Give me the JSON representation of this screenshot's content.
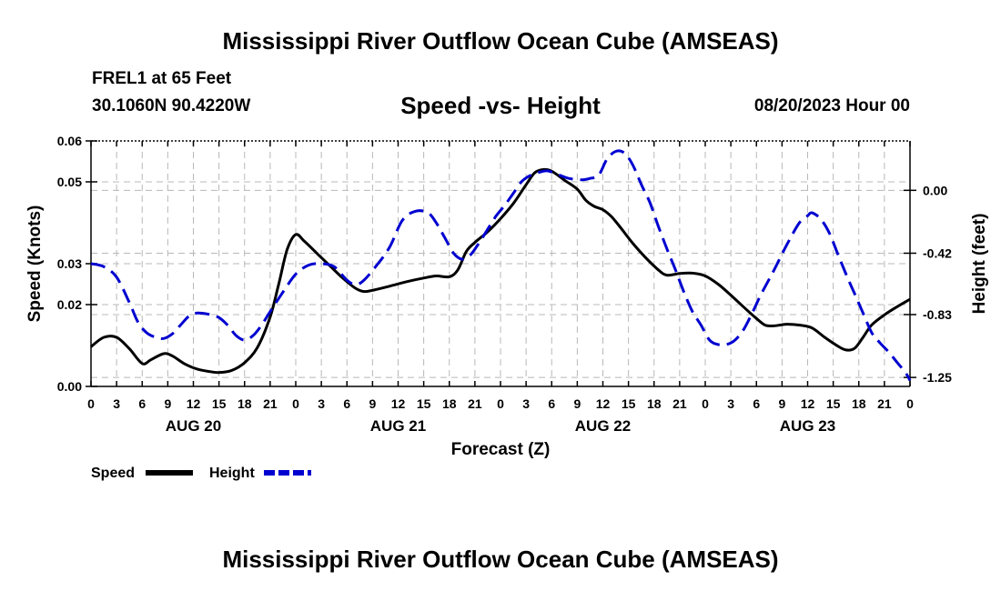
{
  "header": {
    "main_title": "Mississippi River Outflow Ocean Cube (AMSEAS)",
    "station": "FREL1 at 65 Feet",
    "coords": "30.1060N  90.4220W",
    "date": "08/20/2023 Hour 00"
  },
  "footer": {
    "main_title": "Mississippi River Outflow Ocean Cube (AMSEAS)"
  },
  "chart_data": {
    "type": "line",
    "title": "Speed -vs- Height",
    "xlabel": "Forecast (Z)",
    "ylabel": "Speed (Knots)",
    "y2label": "Height (feet)",
    "x_range": [
      0,
      96
    ],
    "ylim": [
      0,
      0.06
    ],
    "y2lim": [
      -1.31,
      0.33
    ],
    "yticks": [
      0,
      0.02,
      0.03,
      0.05,
      0.06
    ],
    "yticklabels": [
      "0.00",
      "0.02",
      "0.03",
      "0.05",
      "0.06"
    ],
    "y2ticks": [
      0.0,
      -0.42,
      -0.83,
      -1.25
    ],
    "y2ticklabels": [
      "0.00",
      "-0.42",
      "-0.83",
      "-1.25"
    ],
    "xtick_labels": [
      "0",
      "3",
      "6",
      "9",
      "12",
      "15",
      "18",
      "21",
      "0",
      "3",
      "6",
      "9",
      "12",
      "15",
      "18",
      "21",
      "0",
      "3",
      "6",
      "9",
      "12",
      "15",
      "18",
      "21",
      "0",
      "3",
      "6",
      "9",
      "12",
      "15",
      "18",
      "21",
      "0"
    ],
    "day_labels": [
      {
        "label": "AUG 20",
        "x": 12
      },
      {
        "label": "AUG 21",
        "x": 36
      },
      {
        "label": "AUG 22",
        "x": 60
      },
      {
        "label": "AUG 23",
        "x": 84
      }
    ],
    "grid": true,
    "series": [
      {
        "name": "Speed",
        "axis": "left",
        "color": "#000000",
        "style": "solid",
        "points": [
          [
            0,
            0.0097
          ],
          [
            1.5,
            0.012
          ],
          [
            3,
            0.012
          ],
          [
            4.5,
            0.0092
          ],
          [
            6,
            0.0056
          ],
          [
            7,
            0.0065
          ],
          [
            8.5,
            0.008
          ],
          [
            9.5,
            0.0075
          ],
          [
            11,
            0.0055
          ],
          [
            12.5,
            0.0042
          ],
          [
            14,
            0.0036
          ],
          [
            15,
            0.0034
          ],
          [
            16.5,
            0.0039
          ],
          [
            18,
            0.0058
          ],
          [
            19.5,
            0.0095
          ],
          [
            21,
            0.017
          ],
          [
            22,
            0.025
          ],
          [
            23,
            0.0335
          ],
          [
            24,
            0.0371
          ],
          [
            25,
            0.0355
          ],
          [
            26.5,
            0.0325
          ],
          [
            28,
            0.0295
          ],
          [
            29.5,
            0.0265
          ],
          [
            31,
            0.024
          ],
          [
            32,
            0.0232
          ],
          [
            33,
            0.0235
          ],
          [
            35,
            0.0245
          ],
          [
            37,
            0.0256
          ],
          [
            39,
            0.0265
          ],
          [
            40.5,
            0.027
          ],
          [
            42,
            0.0268
          ],
          [
            43,
            0.0285
          ],
          [
            44,
            0.033
          ],
          [
            45,
            0.0352
          ],
          [
            46.5,
            0.0378
          ],
          [
            48,
            0.041
          ],
          [
            49.5,
            0.0447
          ],
          [
            51,
            0.0493
          ],
          [
            52,
            0.0522
          ],
          [
            53,
            0.053
          ],
          [
            54,
            0.0526
          ],
          [
            55.5,
            0.0504
          ],
          [
            57,
            0.0482
          ],
          [
            58,
            0.0455
          ],
          [
            59,
            0.044
          ],
          [
            60,
            0.0432
          ],
          [
            61,
            0.0415
          ],
          [
            62,
            0.039
          ],
          [
            63.5,
            0.035
          ],
          [
            65,
            0.0315
          ],
          [
            66.5,
            0.0285
          ],
          [
            67.5,
            0.0272
          ],
          [
            69,
            0.0276
          ],
          [
            70.5,
            0.0277
          ],
          [
            72,
            0.027
          ],
          [
            73.5,
            0.025
          ],
          [
            75,
            0.0223
          ],
          [
            76.5,
            0.0194
          ],
          [
            78,
            0.0166
          ],
          [
            79,
            0.015
          ],
          [
            80,
            0.0148
          ],
          [
            81.5,
            0.0152
          ],
          [
            83,
            0.015
          ],
          [
            84.5,
            0.0143
          ],
          [
            86,
            0.012
          ],
          [
            87.5,
            0.0099
          ],
          [
            88.5,
            0.0089
          ],
          [
            89.5,
            0.0093
          ],
          [
            90.5,
            0.012
          ],
          [
            91.5,
            0.015
          ],
          [
            93,
            0.0175
          ],
          [
            94.5,
            0.0195
          ],
          [
            96,
            0.0213
          ]
        ]
      },
      {
        "name": "Height",
        "axis": "right",
        "color": "#0000d0",
        "style": "dashed",
        "points": [
          [
            0,
            -0.49
          ],
          [
            1.5,
            -0.51
          ],
          [
            3,
            -0.58
          ],
          [
            4.5,
            -0.75
          ],
          [
            5.5,
            -0.88
          ],
          [
            6.5,
            -0.95
          ],
          [
            7.5,
            -0.98
          ],
          [
            8.5,
            -0.99
          ],
          [
            9.5,
            -0.96
          ],
          [
            10.5,
            -0.9
          ],
          [
            11.5,
            -0.84
          ],
          [
            12.5,
            -0.82
          ],
          [
            14,
            -0.83
          ],
          [
            15,
            -0.85
          ],
          [
            16,
            -0.9
          ],
          [
            17,
            -0.97
          ],
          [
            18,
            -1.0
          ],
          [
            19,
            -0.97
          ],
          [
            20,
            -0.9
          ],
          [
            21,
            -0.81
          ],
          [
            22.5,
            -0.68
          ],
          [
            24,
            -0.56
          ],
          [
            25.5,
            -0.5
          ],
          [
            27,
            -0.49
          ],
          [
            28.5,
            -0.51
          ],
          [
            30,
            -0.6
          ],
          [
            31,
            -0.63
          ],
          [
            32,
            -0.6
          ],
          [
            33.5,
            -0.5
          ],
          [
            35,
            -0.38
          ],
          [
            36.5,
            -0.2
          ],
          [
            38,
            -0.14
          ],
          [
            39.5,
            -0.15
          ],
          [
            40.5,
            -0.22
          ],
          [
            41.5,
            -0.32
          ],
          [
            42.5,
            -0.42
          ],
          [
            43.5,
            -0.46
          ],
          [
            44.5,
            -0.43
          ],
          [
            45.5,
            -0.35
          ],
          [
            46.5,
            -0.26
          ],
          [
            47.5,
            -0.17
          ],
          [
            48.5,
            -0.1
          ],
          [
            49.5,
            -0.02
          ],
          [
            50.5,
            0.06
          ],
          [
            51.5,
            0.1
          ],
          [
            52.5,
            0.12
          ],
          [
            53.5,
            0.13
          ],
          [
            55,
            0.1
          ],
          [
            56,
            0.08
          ],
          [
            57.5,
            0.07
          ],
          [
            58.5,
            0.08
          ],
          [
            59.5,
            0.1
          ],
          [
            60.5,
            0.21
          ],
          [
            61.5,
            0.26
          ],
          [
            62.5,
            0.25
          ],
          [
            63.5,
            0.17
          ],
          [
            64.5,
            0.04
          ],
          [
            65.5,
            -0.08
          ],
          [
            66.5,
            -0.24
          ],
          [
            67.5,
            -0.39
          ],
          [
            68.5,
            -0.53
          ],
          [
            69.5,
            -0.68
          ],
          [
            70.5,
            -0.81
          ],
          [
            71.5,
            -0.9
          ],
          [
            72.5,
            -1.0
          ],
          [
            73.5,
            -1.03
          ],
          [
            74.5,
            -1.03
          ],
          [
            75.5,
            -1.0
          ],
          [
            76.5,
            -0.93
          ],
          [
            77.5,
            -0.82
          ],
          [
            78.5,
            -0.7
          ],
          [
            80,
            -0.54
          ],
          [
            81.5,
            -0.37
          ],
          [
            83,
            -0.22
          ],
          [
            84,
            -0.17
          ],
          [
            84.5,
            -0.15
          ],
          [
            85.5,
            -0.19
          ],
          [
            86.5,
            -0.28
          ],
          [
            87.5,
            -0.42
          ],
          [
            88.5,
            -0.56
          ],
          [
            89.5,
            -0.69
          ],
          [
            90.5,
            -0.82
          ],
          [
            91.5,
            -0.95
          ],
          [
            92.5,
            -1.02
          ],
          [
            93.5,
            -1.08
          ],
          [
            94.5,
            -1.15
          ],
          [
            95.5,
            -1.22
          ],
          [
            96,
            -1.27
          ]
        ]
      }
    ],
    "legend": [
      {
        "label": "Speed",
        "color": "#000000",
        "style": "solid"
      },
      {
        "label": "Height",
        "color": "#0000d0",
        "style": "dashed"
      }
    ],
    "legend_position": "bottom-left"
  }
}
